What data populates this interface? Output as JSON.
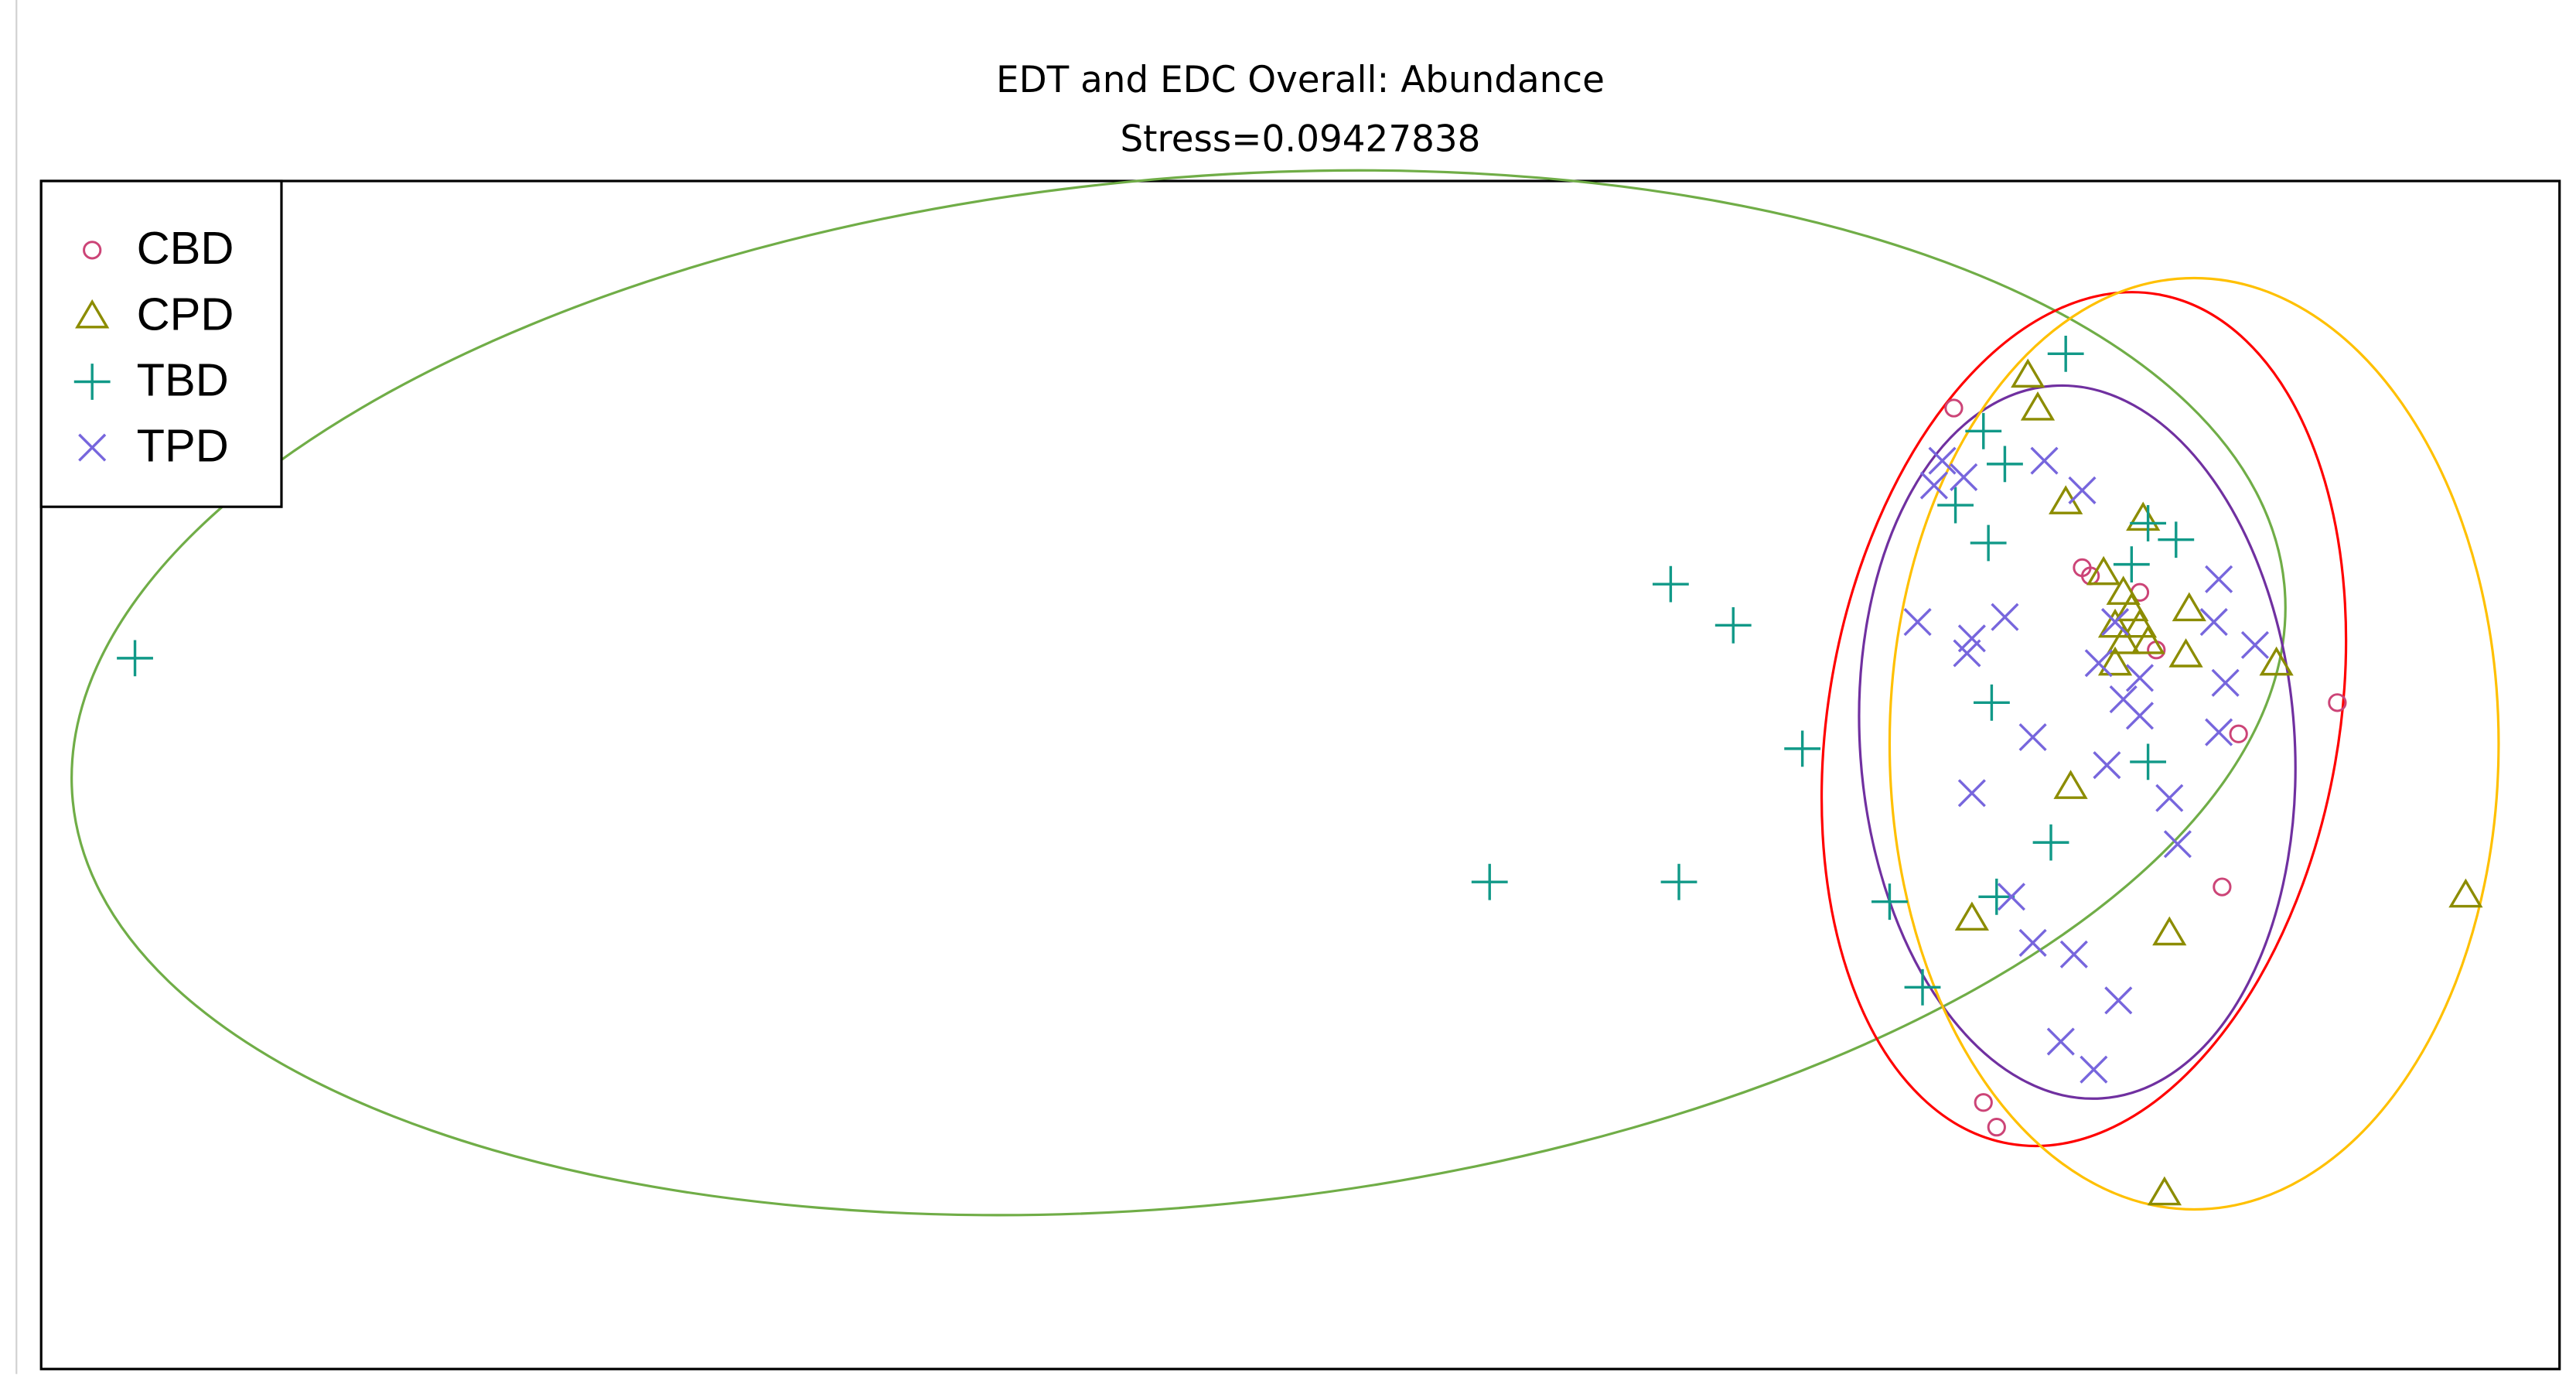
{
  "chart_data": {
    "type": "scatter",
    "title": "EDT and EDC Overall: Abundance",
    "subtitle": "Stress=0.09427838",
    "xlim": [
      0,
      1530
    ],
    "ylim": [
      0,
      722
    ],
    "legend": "top-left",
    "series": [
      {
        "name": "CBD",
        "color": "#cc4477",
        "marker": "circle",
        "x": [
          1162,
          1240,
          1245,
          1275,
          1285,
          1395,
          1335,
          1325,
          1180,
          1188
        ],
        "y": [
          584,
          487,
          482,
          472,
          437,
          405,
          386,
          293,
          162,
          147
        ]
      },
      {
        "name": "CPD",
        "color": "#8c8c00",
        "marker": "triangle",
        "x": [
          1207,
          1213,
          1230,
          1277,
          1253,
          1265,
          1270,
          1260,
          1265,
          1275,
          1305,
          1280,
          1260,
          1303,
          1358,
          1233,
          1173,
          1293,
          1473,
          1290
        ],
        "y": [
          604,
          584,
          527,
          517,
          484,
          472,
          462,
          452,
          442,
          452,
          462,
          442,
          429,
          434,
          429,
          354,
          274,
          265,
          288,
          107
        ]
      },
      {
        "name": "TBD",
        "color": "#119988",
        "marker": "plus",
        "x": [
          57,
          1230,
          1180,
          1193,
          1163,
          1280,
          1297,
          1183,
          1270,
          990,
          1028,
          1185,
          1070,
          1280,
          1221,
          880,
          995,
          1123,
          1188,
          1143
        ],
        "y": [
          432,
          617,
          570,
          550,
          525,
          514,
          504,
          502,
          489,
          477,
          452,
          405,
          377,
          369,
          320,
          296,
          296,
          284,
          287,
          232
        ]
      },
      {
        "name": "TPD",
        "color": "#7766dd",
        "marker": "cross",
        "x": [
          1155,
          1168,
          1217,
          1240,
          1150,
          1323,
          1140,
          1173,
          1193,
          1170,
          1320,
          1345,
          1260,
          1250,
          1275,
          1265,
          1275,
          1327,
          1323,
          1210,
          1255,
          1173,
          1293,
          1298,
          1197,
          1210,
          1235,
          1262,
          1227,
          1247
        ],
        "y": [
          552,
          542,
          552,
          534,
          537,
          480,
          454,
          444,
          457,
          435,
          454,
          440,
          454,
          429,
          420,
          407,
          397,
          417,
          387,
          384,
          367,
          350,
          347,
          319,
          287,
          259,
          252,
          224,
          199,
          182
        ]
      }
    ],
    "ellipses": [
      {
        "color": "#70ad47",
        "cx": 691,
        "cy": 411,
        "rx": 675,
        "ry": 312,
        "angle": 5.6
      },
      {
        "color": "#ff0000",
        "cx": 1241,
        "cy": 395,
        "rx": 155,
        "ry": 262,
        "angle": -10
      },
      {
        "color": "#7030a0",
        "cx": 1237,
        "cy": 381,
        "rx": 132,
        "ry": 217,
        "angle": 4
      },
      {
        "color": "#ffc000",
        "cx": 1308,
        "cy": 380,
        "rx": 185,
        "ry": 283,
        "angle": 0
      }
    ]
  }
}
